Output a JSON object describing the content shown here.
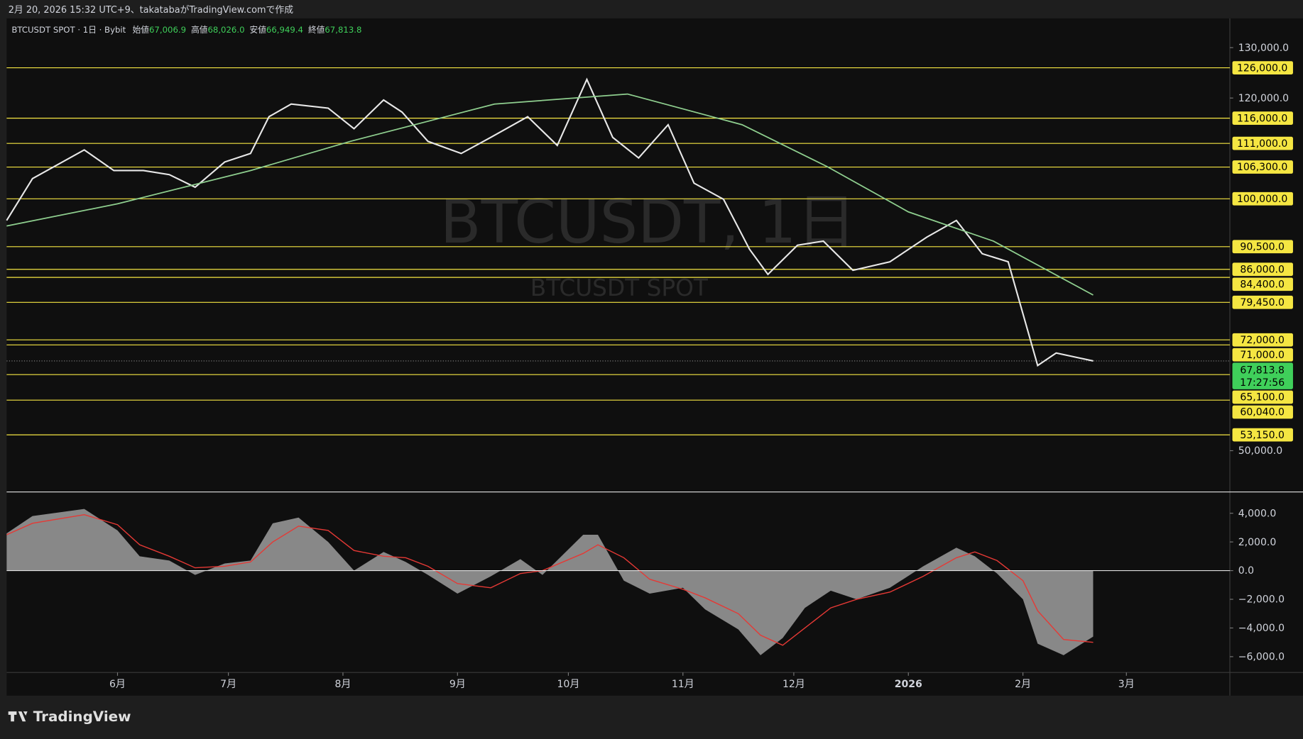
{
  "header": {
    "caption": "2月 20, 2026 15:32 UTC+9、takatabaがTradingView.comで作成",
    "symbol": "BTCUSDT SPOT · 1日 · Bybit",
    "ohlc": [
      {
        "name": "始値",
        "value": "67,006.9"
      },
      {
        "name": "高値",
        "value": "68,026.0"
      },
      {
        "name": "安値",
        "value": "66,949.4"
      },
      {
        "name": "終値",
        "value": "67,813.8"
      }
    ],
    "watermark": "BTCUSDT, 1日",
    "watermark_sub": "BTCUSDT SPOT",
    "brand": "TradingView"
  },
  "chart_data": [
    {
      "type": "line",
      "xlim": [
        1,
        332
      ],
      "ylim": [
        41900,
        135800
      ],
      "xticks": [
        {
          "value": 31,
          "label": "6月"
        },
        {
          "value": 61,
          "label": "7月"
        },
        {
          "value": 92,
          "label": "8月"
        },
        {
          "value": 123,
          "label": "9月"
        },
        {
          "value": 153,
          "label": "10月"
        },
        {
          "value": 184,
          "label": "11月"
        },
        {
          "value": 214,
          "label": "12月"
        },
        {
          "value": 245,
          "label": "2026"
        },
        {
          "value": 276,
          "label": "2月"
        },
        {
          "value": 304,
          "label": "3月"
        }
      ],
      "yticks": [
        {
          "value": 130000,
          "label": "130,000.0"
        },
        {
          "value": 120000,
          "label": "120,000.0"
        },
        {
          "value": 50000,
          "label": "50,000.0"
        }
      ],
      "series": [
        {
          "color": "#e8e8e8",
          "x": [
            1,
            8,
            22,
            30,
            38,
            45,
            52,
            60,
            67,
            72,
            78,
            88,
            95,
            103,
            108,
            115,
            124,
            132,
            142,
            150,
            158,
            165,
            172,
            180,
            187,
            195,
            202,
            207,
            215,
            222,
            230,
            240,
            250,
            258,
            265,
            272,
            280,
            285,
            295
          ],
          "values": [
            95700,
            104000,
            109700,
            105600,
            105600,
            104800,
            102300,
            107300,
            109000,
            116300,
            118800,
            118000,
            113900,
            119600,
            117200,
            111400,
            109000,
            112200,
            116300,
            110600,
            123700,
            112200,
            108100,
            114700,
            103100,
            99900,
            90000,
            85000,
            90800,
            91600,
            85800,
            87500,
            92400,
            95700,
            89100,
            87500,
            66900,
            69400,
            67813.8
          ]
        },
        {
          "color": "#8fcf8f",
          "x": [
            1,
            31,
            67,
            94,
            133,
            169,
            200,
            223,
            245,
            268,
            295
          ],
          "values": [
            94600,
            99000,
            105600,
            111400,
            118800,
            120800,
            114700,
            106400,
            97400,
            91600,
            80900
          ]
        }
      ],
      "level_color": "#f5e642",
      "levels": [
        {
          "value": 126000,
          "label": "126,000.0"
        },
        {
          "value": 116000,
          "label": "116,000.0"
        },
        {
          "value": 111000,
          "label": "111,000.0"
        },
        {
          "value": 106300,
          "label": "106,300.0"
        },
        {
          "value": 100000,
          "label": "100,000.0"
        },
        {
          "value": 90500,
          "label": "90,500.0"
        },
        {
          "value": 86000,
          "label": "86,000.0"
        },
        {
          "value": 84400,
          "label": "84,400.0"
        },
        {
          "value": 79450,
          "label": "79,450.0"
        },
        {
          "value": 72000,
          "label": "72,000.0"
        },
        {
          "value": 71000,
          "label": "71,000.0"
        },
        {
          "value": 65100,
          "label": "65,100.0"
        },
        {
          "value": 60040,
          "label": "60,040.0"
        },
        {
          "value": 53150,
          "label": "53,150.0"
        }
      ],
      "last_price": {
        "value": 67813.8,
        "label": "67,813.8",
        "color": "#3fcf5a"
      },
      "countdown": "17:27:56"
    },
    {
      "type": "area",
      "xlim": [
        1,
        332
      ],
      "ylim": [
        -7100,
        5400
      ],
      "yticks": [
        {
          "value": 4000,
          "label": "4,000.0"
        },
        {
          "value": 2000,
          "label": "2,000.0"
        },
        {
          "value": 0,
          "label": "0.0"
        },
        {
          "value": -2000,
          "label": "−2,000.0"
        },
        {
          "value": -4000,
          "label": "−4,000.0"
        },
        {
          "value": -6000,
          "label": "−6,000.0"
        }
      ],
      "x": [
        1,
        8,
        22,
        31,
        37,
        45,
        52,
        60,
        67,
        73,
        80,
        88,
        95,
        103,
        109,
        115,
        123,
        132,
        140,
        146,
        157,
        161,
        168,
        175,
        184,
        190,
        199,
        205,
        211,
        217,
        224,
        231,
        240,
        249,
        258,
        263,
        269,
        276,
        280,
        287,
        295
      ],
      "series": [
        {
          "color": "#9e9e9e",
          "values": [
            2600,
            3800,
            4300,
            2800,
            1000,
            700,
            -300,
            500,
            700,
            3300,
            3700,
            2000,
            0,
            1300,
            600,
            -300,
            -1600,
            -400,
            800,
            -300,
            2500,
            2500,
            -700,
            -1600,
            -1200,
            -2700,
            -4100,
            -5900,
            -4700,
            -2600,
            -1400,
            -2000,
            -1200,
            300,
            1600,
            1000,
            -200,
            -2000,
            -5100,
            -5900,
            -4600
          ]
        },
        {
          "color": "#e53935",
          "values": [
            2500,
            3300,
            3900,
            3200,
            1800,
            1000,
            200,
            300,
            600,
            2000,
            3100,
            2800,
            1400,
            1000,
            900,
            300,
            -900,
            -1200,
            -200,
            0,
            1200,
            1800,
            900,
            -600,
            -1300,
            -1900,
            -3000,
            -4500,
            -5200,
            -4000,
            -2600,
            -2000,
            -1500,
            -400,
            900,
            1300,
            700,
            -700,
            -2800,
            -4800,
            -5000
          ]
        }
      ]
    }
  ]
}
